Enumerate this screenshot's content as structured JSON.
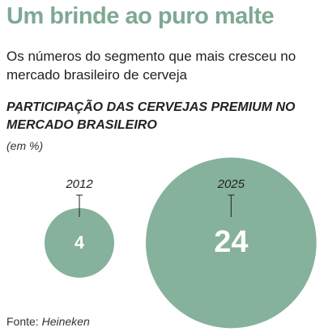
{
  "chart_data": {
    "type": "bubble",
    "title": "Um brinde ao puro malte",
    "subtitle": "Os números do segmento que mais cresceu no mercado brasileiro de cerveja",
    "chart_title": "PARTICIPAÇÃO DAS CERVEJAS PREMIUM NO MERCADO BRASILEIRO",
    "unit_label": "(em %)",
    "categories": [
      "2012",
      "2025"
    ],
    "values": [
      4,
      24
    ],
    "color": "#86b19c",
    "source_label": "Fonte:",
    "source": "Heineken"
  }
}
